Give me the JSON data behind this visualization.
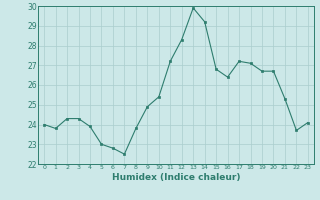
{
  "x": [
    0,
    1,
    2,
    3,
    4,
    5,
    6,
    7,
    8,
    9,
    10,
    11,
    12,
    13,
    14,
    15,
    16,
    17,
    18,
    19,
    20,
    21,
    22,
    23
  ],
  "y": [
    24.0,
    23.8,
    24.3,
    24.3,
    23.9,
    23.0,
    22.8,
    22.5,
    23.8,
    24.9,
    25.4,
    27.2,
    28.3,
    29.9,
    29.2,
    26.8,
    26.4,
    27.2,
    27.1,
    26.7,
    26.7,
    25.3,
    23.7,
    24.1
  ],
  "xlabel": "Humidex (Indice chaleur)",
  "ylim": [
    22,
    30
  ],
  "xlim": [
    -0.5,
    23.5
  ],
  "yticks": [
    22,
    23,
    24,
    25,
    26,
    27,
    28,
    29,
    30
  ],
  "xticks": [
    0,
    1,
    2,
    3,
    4,
    5,
    6,
    7,
    8,
    9,
    10,
    11,
    12,
    13,
    14,
    15,
    16,
    17,
    18,
    19,
    20,
    21,
    22,
    23
  ],
  "line_color": "#2e7d6e",
  "marker_color": "#2e7d6e",
  "bg_color": "#cce8e8",
  "grid_color": "#aacece",
  "axes_color": "#2e7d6e",
  "spine_color": "#2e7d6e"
}
